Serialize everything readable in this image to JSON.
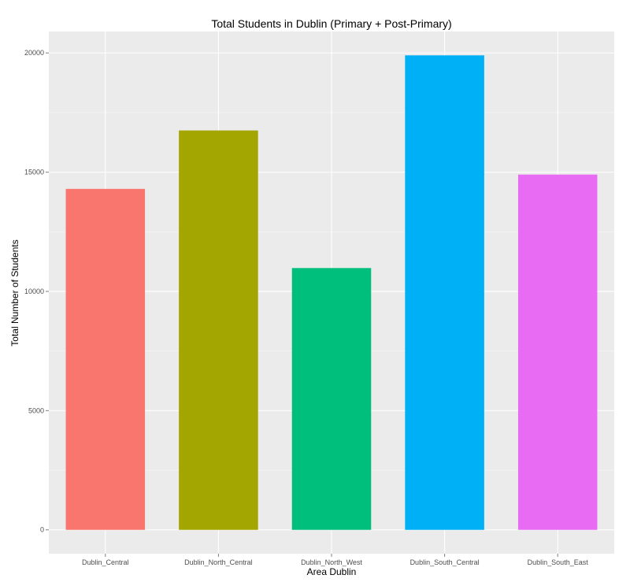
{
  "chart_data": {
    "type": "bar",
    "title": "Total Students in Dublin (Primary + Post-Primary)",
    "xlabel": "Area Dublin",
    "ylabel": "Total Number of Students",
    "categories": [
      "Dublin_Central",
      "Dublin_North_Central",
      "Dublin_North_West",
      "Dublin_South_Central",
      "Dublin_South_East"
    ],
    "values": [
      14300,
      16750,
      10980,
      19900,
      14900
    ],
    "colors": [
      "#F8766D",
      "#A3A500",
      "#00BF7D",
      "#00B0F6",
      "#E76BF3"
    ],
    "ylim": [
      -1000,
      20900
    ],
    "y_ticks": [
      0,
      5000,
      10000,
      15000,
      20000
    ],
    "y_tick_labels": [
      "0",
      "5000",
      "10000",
      "15000",
      "20000"
    ],
    "grid": true,
    "legend": "none",
    "background": "#EBEBEB",
    "grid_major_color": "#FFFFFF"
  }
}
